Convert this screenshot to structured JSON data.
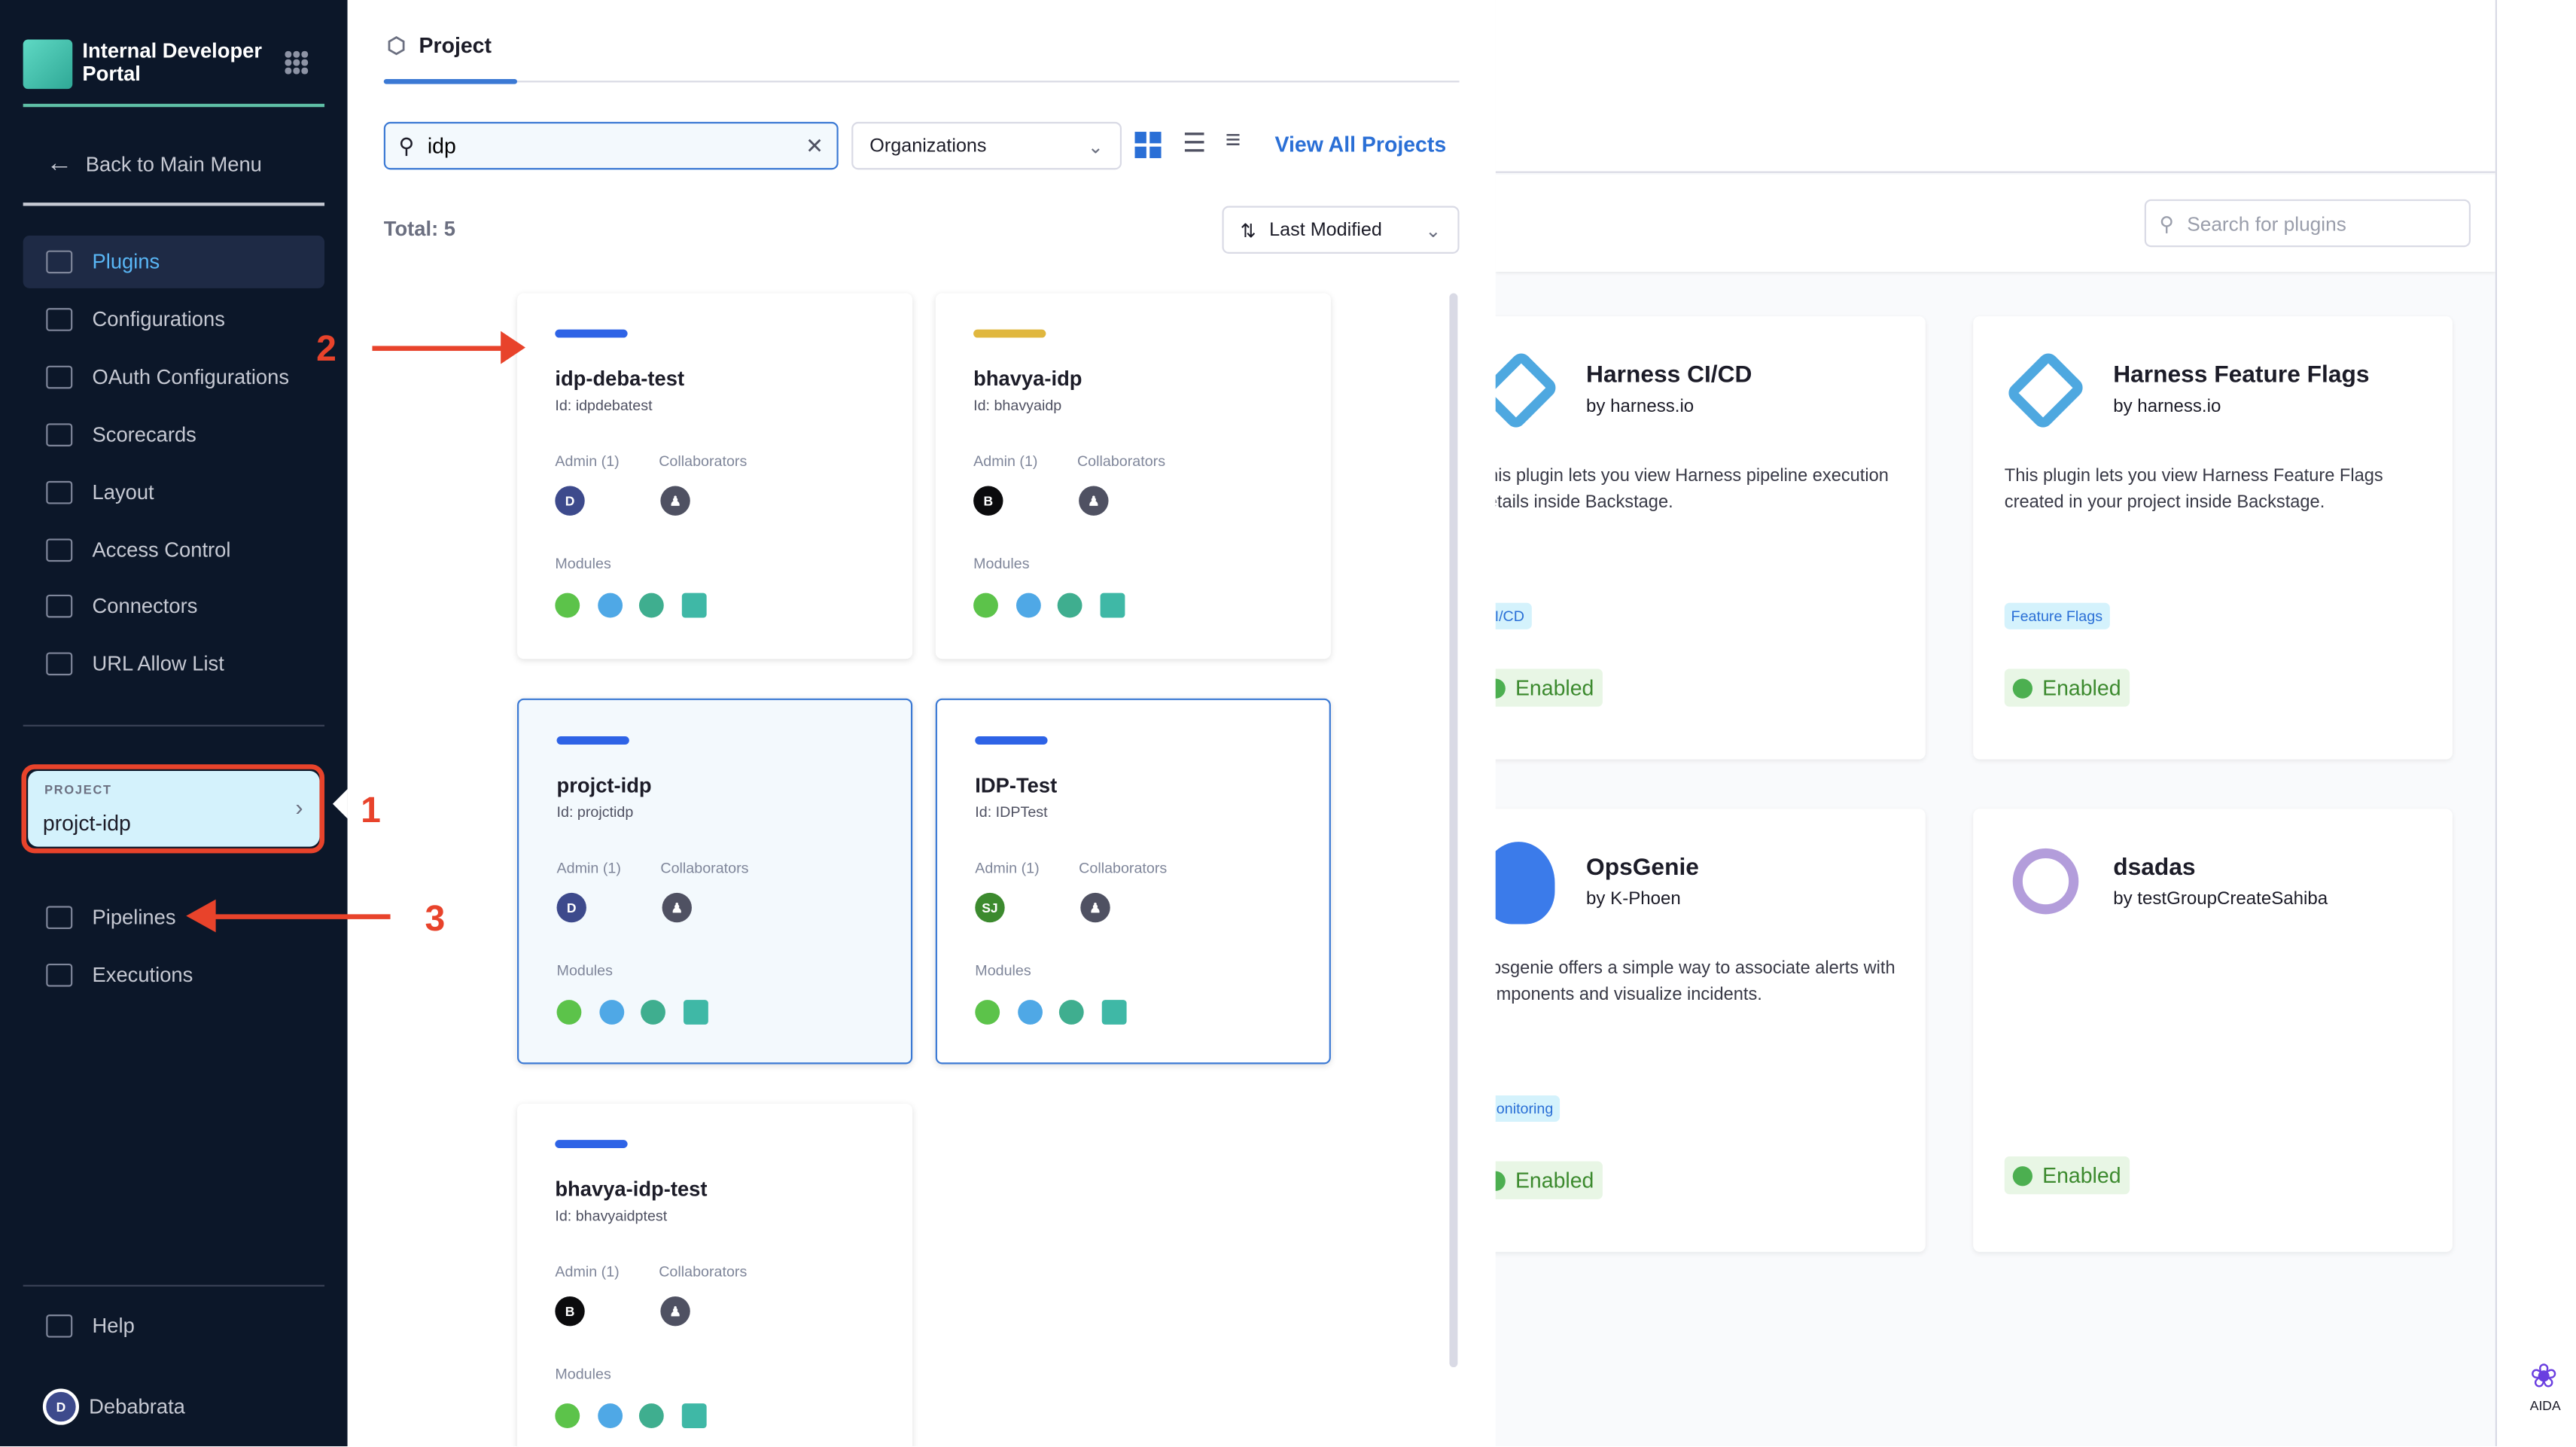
{
  "sidebar": {
    "brand": "Internal Developer Portal",
    "back": "Back to Main Menu",
    "items": [
      {
        "label": "Plugins",
        "icon": "puzzle-icon",
        "active": true
      },
      {
        "label": "Configurations",
        "icon": "gears-icon"
      },
      {
        "label": "OAuth Configurations",
        "icon": "lock-icon"
      },
      {
        "label": "Scorecards",
        "icon": "scorecard-icon"
      },
      {
        "label": "Layout",
        "icon": "layout-icon"
      },
      {
        "label": "Access Control",
        "icon": "user-icon"
      },
      {
        "label": "Connectors",
        "icon": "connector-icon"
      },
      {
        "label": "URL Allow List",
        "icon": "link-icon"
      }
    ],
    "project_picker": {
      "label": "PROJECT",
      "value": "projct-idp"
    },
    "project_items": [
      {
        "label": "Pipelines",
        "icon": "pipeline-icon"
      },
      {
        "label": "Executions",
        "icon": "play-icon"
      }
    ],
    "help": "Help",
    "user": {
      "name": "Debabrata",
      "initial": "D"
    }
  },
  "drawer": {
    "tab": "Project",
    "search_value": "idp",
    "org_select": "Organizations",
    "view_all": "View All Projects",
    "total": "Total: 5",
    "sort": "Last Modified",
    "admin_label": "Admin (1)",
    "collab_label": "Collaborators",
    "modules_label": "Modules",
    "projects": [
      {
        "name": "idp-deba-test",
        "id": "Id: idpdebatest",
        "color": "#2e63e6",
        "admin": "D",
        "admin_color": "#3d4a8c"
      },
      {
        "name": "bhavya-idp",
        "id": "Id: bhavyaidp",
        "color": "#e0b73e",
        "admin": "B",
        "admin_color": "#0b0b0d"
      },
      {
        "name": "projct-idp",
        "id": "Id: projctidp",
        "color": "#2e63e6",
        "admin": "D",
        "admin_color": "#3d4a8c",
        "selected": true,
        "tinted": true
      },
      {
        "name": "IDP-Test",
        "id": "Id: IDPTest",
        "color": "#2e63e6",
        "admin": "SJ",
        "admin_color": "#3c8a2e",
        "selected": true
      },
      {
        "name": "bhavya-idp-test",
        "id": "Id: bhavyaidptest",
        "color": "#2e63e6",
        "admin": "B",
        "admin_color": "#0b0b0d"
      }
    ]
  },
  "plugins": {
    "search_placeholder": "Search for plugins",
    "cards": [
      {
        "title": "Harness CI/CD",
        "by": "by harness.io",
        "desc": "This plugin lets you view Harness pipeline execution details inside Backstage.",
        "tag": "CI/CD",
        "status": "Enabled"
      },
      {
        "title": "Harness Feature Flags",
        "by": "by harness.io",
        "desc": "This plugin lets you view Harness Feature Flags created in your project inside Backstage.",
        "tag": "Feature Flags",
        "status": "Enabled"
      },
      {
        "title": "OpsGenie",
        "by": "by K-Phoen",
        "desc": "Opsgenie offers a simple way to associate alerts with components and visualize incidents.",
        "tag": "Monitoring",
        "status": "Enabled"
      },
      {
        "title": "dsadas",
        "by": "by testGroupCreateSahiba",
        "desc": "",
        "tag": "",
        "status": "Enabled"
      }
    ]
  },
  "aida": "AIDA",
  "annotations": [
    "1",
    "2",
    "3"
  ]
}
